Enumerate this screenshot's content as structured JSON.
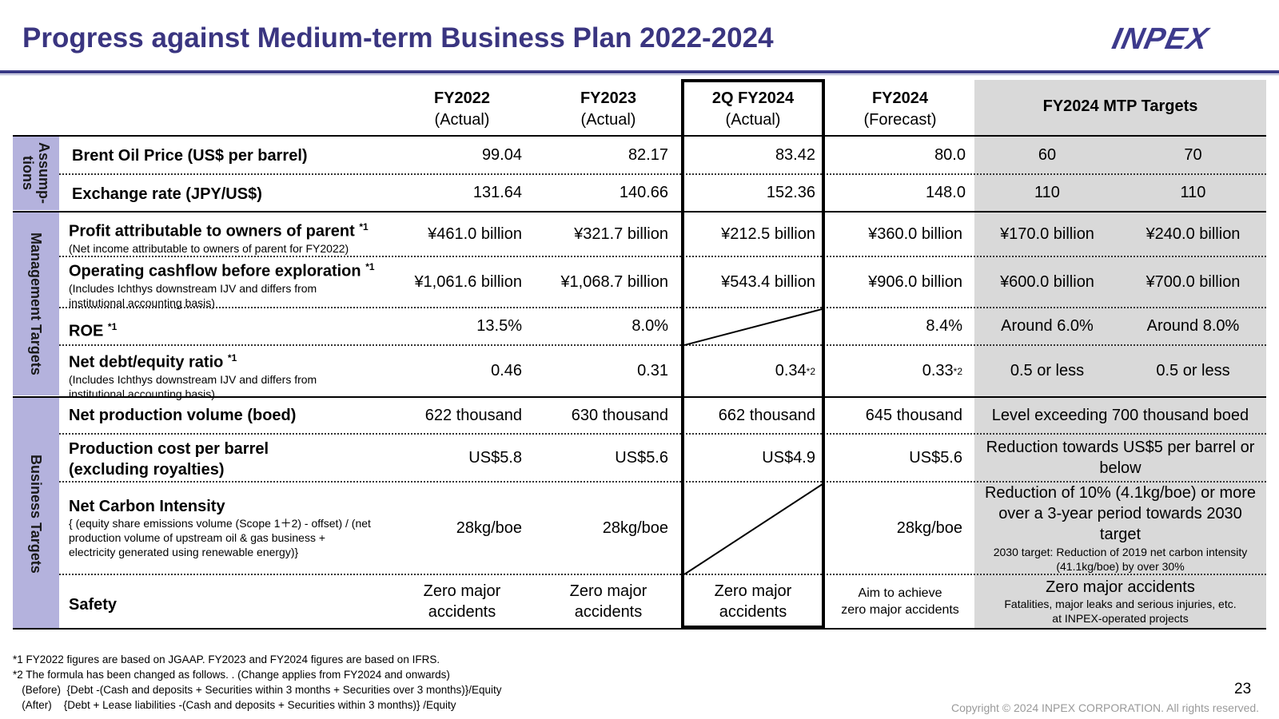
{
  "title": "Progress against Medium-term Business Plan 2022-2024",
  "logo": "INPEX",
  "colors": {
    "title": "#3a3580",
    "side_band": "#b4b2dd",
    "target_bg": "#d9d9d9"
  },
  "columns": [
    {
      "name": "FY2022",
      "sub": "(Actual)"
    },
    {
      "name": "FY2023",
      "sub": "(Actual)"
    },
    {
      "name": "2Q FY2024",
      "sub": "(Actual)"
    },
    {
      "name": "FY2024",
      "sub": "(Forecast)"
    }
  ],
  "targets_header": "FY2024 MTP Targets",
  "groups": {
    "assumptions": "Assump-\ntions",
    "management": "Management Targets",
    "business": "Business Targets"
  },
  "rows": {
    "brent": {
      "label": "Brent Oil Price (US$ per barrel)",
      "values": [
        "99.04",
        "82.17",
        "83.42",
        "80.0"
      ],
      "t1": "60",
      "t2": "70"
    },
    "fx": {
      "label": "Exchange rate (JPY/US$)",
      "values": [
        "131.64",
        "140.66",
        "152.36",
        "148.0"
      ],
      "t1": "110",
      "t2": "110"
    },
    "profit": {
      "label": "Profit attributable to owners of parent",
      "mark": "*1",
      "sub": "(Net income attributable to owners of parent for FY2022)",
      "values": [
        "¥461.0 billion",
        "¥321.7 billion",
        "¥212.5 billion",
        "¥360.0 billion"
      ],
      "t1": "¥170.0 billion",
      "t2": "¥240.0 billion"
    },
    "ocf": {
      "label": "Operating cashflow before exploration",
      "mark": "*1",
      "sub1": "(Includes Ichthys downstream IJV and differs from",
      "sub2": "institutional accounting basis)",
      "values": [
        "¥1,061.6 billion",
        "¥1,068.7  billion",
        "¥543.4 billion",
        "¥906.0 billion"
      ],
      "t1": "¥600.0 billion",
      "t2": "¥700.0 billion"
    },
    "roe": {
      "label": "ROE",
      "mark": "*1",
      "values": [
        "13.5%",
        "8.0%",
        "8.4%"
      ],
      "t1": "Around 6.0%",
      "t2": "Around 8.0%"
    },
    "nde": {
      "label": "Net debt/equity ratio",
      "mark": "*1",
      "sub1": "(Includes Ichthys downstream IJV and differs from",
      "sub2": "institutional accounting basis)",
      "values": [
        "0.46",
        "0.31",
        "0.34",
        "0.33"
      ],
      "v_marks": [
        "*2",
        "*2"
      ],
      "t1": "0.5 or less",
      "t2": "0.5 or less"
    },
    "prod": {
      "label": "Net production volume (boed)",
      "values": [
        "622 thousand",
        "630 thousand",
        "662 thousand",
        "645 thousand"
      ],
      "target": "Level exceeding 700 thousand boed"
    },
    "cost": {
      "label1": "Production cost per barrel",
      "label2": "(excluding royalties)",
      "values": [
        "US$5.8",
        "US$5.6",
        "US$4.9",
        "US$5.6"
      ],
      "target1": "Reduction towards US$5 per barrel or",
      "target2": "below"
    },
    "carbon": {
      "label": "Net Carbon Intensity",
      "sub1": "{ (equity share emissions volume (Scope 1＋2) - offset) / (net",
      "sub2": "production volume of upstream oil & gas business +",
      "sub3": "electricity generated using renewable energy)}",
      "values": [
        "28kg/boe",
        "28kg/boe",
        "28kg/boe"
      ],
      "target1": "Reduction of 10% (4.1kg/boe) or more",
      "target2": "over a 3-year period towards 2030",
      "target3": "target",
      "target_note1": "2030 target: Reduction of 2019 net carbon intensity",
      "target_note2": "(41.1kg/boe) by over 30%"
    },
    "safety": {
      "label": "Safety",
      "v_line1": "Zero major",
      "v_line2": "accidents",
      "forecast1": "Aim to achieve",
      "forecast2": "zero major accidents",
      "target": "Zero major accidents",
      "target_note1": "Fatalities, major leaks and serious injuries, etc.",
      "target_note2": "at INPEX-operated projects"
    }
  },
  "footnotes": [
    "*1 FY2022 figures are based on JGAAP. FY2023 and FY2024 figures are based on IFRS.",
    "*2 The formula has been changed as follows. . (Change applies from FY2024 and onwards)",
    "   (Before)  {Debt -(Cash and deposits + Securities within 3 months + Securities over 3 months)}/Equity",
    "   (After)    {Debt + Lease liabilities -(Cash and deposits + Securities within 3 months)} /Equity"
  ],
  "page_number": "23",
  "copyright": "Copyright © 2024 INPEX CORPORATION. All rights reserved."
}
